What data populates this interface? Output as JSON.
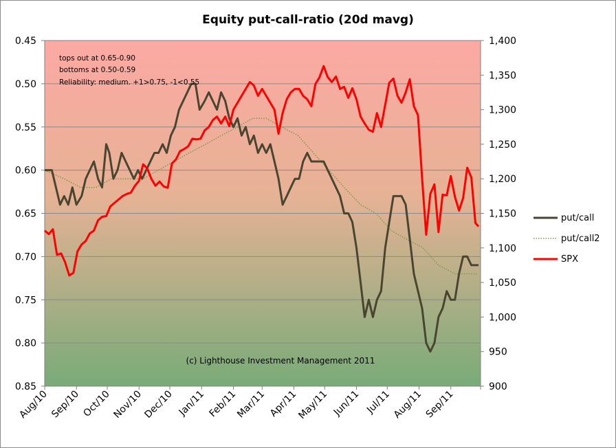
{
  "chart_data": {
    "type": "line",
    "title": "Equity put-call-ratio (20d mavg)",
    "xlabel": "",
    "ylabel": "",
    "y_left": {
      "range": [
        0.45,
        0.85
      ],
      "inverted": true,
      "ticks": [
        "0.45",
        "0.50",
        "0.55",
        "0.60",
        "0.65",
        "0.70",
        "0.75",
        "0.80",
        "0.85"
      ]
    },
    "y_right": {
      "range": [
        900,
        1400
      ],
      "ticks": [
        "1,400",
        "1,350",
        "1,300",
        "1,250",
        "1,200",
        "1,150",
        "1,100",
        "1,050",
        "1,000",
        "950",
        "900"
      ]
    },
    "x_ticks": [
      "Aug/10",
      "Sep/10",
      "Oct/10",
      "Nov/10",
      "Dec/10",
      "Jan/11",
      "Feb/11",
      "Mar/11",
      "Apr/11",
      "May/11",
      "Jun/11",
      "Jul/11",
      "Aug/11",
      "Sep/11"
    ],
    "x_range": [
      "2010-08-01",
      "2011-09-30"
    ],
    "grid": true,
    "background": "gradient red (top) to green (bottom)",
    "legend_position": "right",
    "annotations": {
      "top_left": [
        "tops out at 0.65-0.90",
        "bottoms at 0.50-0.59",
        "Reliability: medium.  +1>0.75, -1<0.55"
      ],
      "bottom": "(c) Lighthouse Investment Management 2011"
    },
    "series": [
      {
        "name": "put/call",
        "axis": "left",
        "color": "#4a4530",
        "style": "solid",
        "points": [
          [
            "2010-08-01",
            0.6
          ],
          [
            "2010-08-08",
            0.6
          ],
          [
            "2010-08-12",
            0.62
          ],
          [
            "2010-08-16",
            0.64
          ],
          [
            "2010-08-20",
            0.63
          ],
          [
            "2010-08-24",
            0.64
          ],
          [
            "2010-08-28",
            0.62
          ],
          [
            "2010-09-01",
            0.64
          ],
          [
            "2010-09-06",
            0.63
          ],
          [
            "2010-09-10",
            0.61
          ],
          [
            "2010-09-14",
            0.6
          ],
          [
            "2010-09-18",
            0.59
          ],
          [
            "2010-09-22",
            0.61
          ],
          [
            "2010-09-26",
            0.62
          ],
          [
            "2010-09-30",
            0.57
          ],
          [
            "2010-10-03",
            0.58
          ],
          [
            "2010-10-07",
            0.61
          ],
          [
            "2010-10-11",
            0.6
          ],
          [
            "2010-10-15",
            0.58
          ],
          [
            "2010-10-19",
            0.59
          ],
          [
            "2010-10-23",
            0.6
          ],
          [
            "2010-10-27",
            0.61
          ],
          [
            "2010-10-31",
            0.6
          ],
          [
            "2010-11-04",
            0.61
          ],
          [
            "2010-11-08",
            0.6
          ],
          [
            "2010-11-12",
            0.59
          ],
          [
            "2010-11-16",
            0.58
          ],
          [
            "2010-11-20",
            0.58
          ],
          [
            "2010-11-24",
            0.57
          ],
          [
            "2010-11-28",
            0.58
          ],
          [
            "2010-12-02",
            0.56
          ],
          [
            "2010-12-06",
            0.55
          ],
          [
            "2010-12-10",
            0.53
          ],
          [
            "2010-12-14",
            0.52
          ],
          [
            "2010-12-18",
            0.51
          ],
          [
            "2010-12-22",
            0.5
          ],
          [
            "2010-12-26",
            0.5
          ],
          [
            "2010-12-30",
            0.53
          ],
          [
            "2011-01-04",
            0.52
          ],
          [
            "2011-01-08",
            0.51
          ],
          [
            "2011-01-12",
            0.52
          ],
          [
            "2011-01-16",
            0.53
          ],
          [
            "2011-01-20",
            0.51
          ],
          [
            "2011-01-24",
            0.52
          ],
          [
            "2011-01-28",
            0.54
          ],
          [
            "2011-02-01",
            0.55
          ],
          [
            "2011-02-05",
            0.54
          ],
          [
            "2011-02-09",
            0.56
          ],
          [
            "2011-02-13",
            0.55
          ],
          [
            "2011-02-17",
            0.57
          ],
          [
            "2011-02-21",
            0.56
          ],
          [
            "2011-02-25",
            0.58
          ],
          [
            "2011-03-01",
            0.57
          ],
          [
            "2011-03-05",
            0.58
          ],
          [
            "2011-03-09",
            0.57
          ],
          [
            "2011-03-13",
            0.59
          ],
          [
            "2011-03-17",
            0.61
          ],
          [
            "2011-03-21",
            0.64
          ],
          [
            "2011-03-25",
            0.63
          ],
          [
            "2011-03-29",
            0.62
          ],
          [
            "2011-04-02",
            0.61
          ],
          [
            "2011-04-06",
            0.61
          ],
          [
            "2011-04-10",
            0.59
          ],
          [
            "2011-04-14",
            0.58
          ],
          [
            "2011-04-18",
            0.59
          ],
          [
            "2011-04-22",
            0.59
          ],
          [
            "2011-04-26",
            0.59
          ],
          [
            "2011-04-30",
            0.59
          ],
          [
            "2011-05-04",
            0.6
          ],
          [
            "2011-05-08",
            0.61
          ],
          [
            "2011-05-12",
            0.62
          ],
          [
            "2011-05-16",
            0.63
          ],
          [
            "2011-05-20",
            0.65
          ],
          [
            "2011-05-24",
            0.65
          ],
          [
            "2011-05-28",
            0.66
          ],
          [
            "2011-06-01",
            0.69
          ],
          [
            "2011-06-05",
            0.73
          ],
          [
            "2011-06-09",
            0.77
          ],
          [
            "2011-06-13",
            0.75
          ],
          [
            "2011-06-17",
            0.77
          ],
          [
            "2011-06-21",
            0.75
          ],
          [
            "2011-06-25",
            0.74
          ],
          [
            "2011-06-29",
            0.69
          ],
          [
            "2011-07-03",
            0.66
          ],
          [
            "2011-07-07",
            0.63
          ],
          [
            "2011-07-11",
            0.63
          ],
          [
            "2011-07-15",
            0.63
          ],
          [
            "2011-07-19",
            0.64
          ],
          [
            "2011-07-23",
            0.68
          ],
          [
            "2011-07-27",
            0.72
          ],
          [
            "2011-07-31",
            0.74
          ],
          [
            "2011-08-04",
            0.76
          ],
          [
            "2011-08-08",
            0.8
          ],
          [
            "2011-08-12",
            0.81
          ],
          [
            "2011-08-16",
            0.8
          ],
          [
            "2011-08-20",
            0.77
          ],
          [
            "2011-08-24",
            0.76
          ],
          [
            "2011-08-28",
            0.74
          ],
          [
            "2011-09-01",
            0.75
          ],
          [
            "2011-09-05",
            0.75
          ],
          [
            "2011-09-09",
            0.72
          ],
          [
            "2011-09-13",
            0.7
          ],
          [
            "2011-09-17",
            0.7
          ],
          [
            "2011-09-21",
            0.71
          ],
          [
            "2011-09-28",
            0.71
          ]
        ]
      },
      {
        "name": "put/call2",
        "axis": "left",
        "color": "#7a9a4a",
        "style": "dotted",
        "points": [
          [
            "2010-08-01",
            0.6
          ],
          [
            "2010-08-20",
            0.61
          ],
          [
            "2010-09-05",
            0.62
          ],
          [
            "2010-09-20",
            0.62
          ],
          [
            "2010-10-05",
            0.61
          ],
          [
            "2010-10-20",
            0.61
          ],
          [
            "2010-11-05",
            0.61
          ],
          [
            "2010-11-20",
            0.6
          ],
          [
            "2010-12-05",
            0.59
          ],
          [
            "2010-12-20",
            0.58
          ],
          [
            "2011-01-05",
            0.57
          ],
          [
            "2011-01-20",
            0.56
          ],
          [
            "2011-02-05",
            0.55
          ],
          [
            "2011-02-20",
            0.54
          ],
          [
            "2011-03-05",
            0.54
          ],
          [
            "2011-03-20",
            0.55
          ],
          [
            "2011-04-05",
            0.56
          ],
          [
            "2011-04-20",
            0.58
          ],
          [
            "2011-05-05",
            0.6
          ],
          [
            "2011-05-20",
            0.62
          ],
          [
            "2011-06-05",
            0.64
          ],
          [
            "2011-06-20",
            0.65
          ],
          [
            "2011-07-05",
            0.67
          ],
          [
            "2011-07-20",
            0.68
          ],
          [
            "2011-08-05",
            0.69
          ],
          [
            "2011-08-20",
            0.71
          ],
          [
            "2011-09-05",
            0.72
          ],
          [
            "2011-09-20",
            0.72
          ],
          [
            "2011-09-28",
            0.72
          ]
        ]
      },
      {
        "name": "SPX",
        "axis": "right",
        "color": "#ff0000",
        "style": "solid",
        "points": [
          [
            "2010-08-01",
            1125
          ],
          [
            "2010-08-05",
            1120
          ],
          [
            "2010-08-09",
            1127
          ],
          [
            "2010-08-13",
            1090
          ],
          [
            "2010-08-17",
            1092
          ],
          [
            "2010-08-21",
            1079
          ],
          [
            "2010-08-25",
            1060
          ],
          [
            "2010-08-29",
            1064
          ],
          [
            "2010-09-02",
            1095
          ],
          [
            "2010-09-06",
            1105
          ],
          [
            "2010-09-10",
            1110
          ],
          [
            "2010-09-14",
            1121
          ],
          [
            "2010-09-18",
            1125
          ],
          [
            "2010-09-22",
            1140
          ],
          [
            "2010-09-26",
            1145
          ],
          [
            "2010-09-30",
            1146
          ],
          [
            "2010-10-04",
            1160
          ],
          [
            "2010-10-08",
            1165
          ],
          [
            "2010-10-12",
            1170
          ],
          [
            "2010-10-16",
            1175
          ],
          [
            "2010-10-20",
            1178
          ],
          [
            "2010-10-24",
            1180
          ],
          [
            "2010-10-28",
            1190
          ],
          [
            "2010-11-01",
            1197
          ],
          [
            "2010-11-05",
            1221
          ],
          [
            "2010-11-09",
            1215
          ],
          [
            "2010-11-13",
            1200
          ],
          [
            "2010-11-17",
            1190
          ],
          [
            "2010-11-21",
            1196
          ],
          [
            "2010-11-25",
            1189
          ],
          [
            "2010-11-29",
            1187
          ],
          [
            "2010-12-03",
            1222
          ],
          [
            "2010-12-07",
            1228
          ],
          [
            "2010-12-11",
            1240
          ],
          [
            "2010-12-15",
            1243
          ],
          [
            "2010-12-19",
            1247
          ],
          [
            "2010-12-23",
            1258
          ],
          [
            "2010-12-27",
            1257
          ],
          [
            "2010-12-31",
            1258
          ],
          [
            "2011-01-04",
            1270
          ],
          [
            "2011-01-08",
            1275
          ],
          [
            "2011-01-12",
            1285
          ],
          [
            "2011-01-16",
            1290
          ],
          [
            "2011-01-20",
            1280
          ],
          [
            "2011-01-24",
            1290
          ],
          [
            "2011-01-28",
            1276
          ],
          [
            "2011-02-01",
            1300
          ],
          [
            "2011-02-05",
            1310
          ],
          [
            "2011-02-09",
            1320
          ],
          [
            "2011-02-13",
            1330
          ],
          [
            "2011-02-17",
            1340
          ],
          [
            "2011-02-21",
            1335
          ],
          [
            "2011-02-25",
            1320
          ],
          [
            "2011-03-01",
            1330
          ],
          [
            "2011-03-05",
            1320
          ],
          [
            "2011-03-09",
            1310
          ],
          [
            "2011-03-13",
            1300
          ],
          [
            "2011-03-17",
            1265
          ],
          [
            "2011-03-21",
            1295
          ],
          [
            "2011-03-25",
            1315
          ],
          [
            "2011-03-29",
            1325
          ],
          [
            "2011-04-02",
            1330
          ],
          [
            "2011-04-06",
            1330
          ],
          [
            "2011-04-10",
            1320
          ],
          [
            "2011-04-14",
            1315
          ],
          [
            "2011-04-18",
            1305
          ],
          [
            "2011-04-22",
            1337
          ],
          [
            "2011-04-26",
            1347
          ],
          [
            "2011-04-30",
            1363
          ],
          [
            "2011-05-04",
            1347
          ],
          [
            "2011-05-08",
            1340
          ],
          [
            "2011-05-12",
            1348
          ],
          [
            "2011-05-16",
            1330
          ],
          [
            "2011-05-20",
            1333
          ],
          [
            "2011-05-24",
            1317
          ],
          [
            "2011-05-28",
            1331
          ],
          [
            "2011-06-01",
            1315
          ],
          [
            "2011-06-05",
            1290
          ],
          [
            "2011-06-09",
            1280
          ],
          [
            "2011-06-13",
            1271
          ],
          [
            "2011-06-17",
            1268
          ],
          [
            "2011-06-21",
            1295
          ],
          [
            "2011-06-25",
            1275
          ],
          [
            "2011-06-29",
            1307
          ],
          [
            "2011-07-03",
            1339
          ],
          [
            "2011-07-07",
            1345
          ],
          [
            "2011-07-11",
            1320
          ],
          [
            "2011-07-15",
            1310
          ],
          [
            "2011-07-19",
            1325
          ],
          [
            "2011-07-23",
            1344
          ],
          [
            "2011-07-27",
            1305
          ],
          [
            "2011-07-31",
            1292
          ],
          [
            "2011-08-04",
            1200
          ],
          [
            "2011-08-08",
            1119
          ],
          [
            "2011-08-12",
            1178
          ],
          [
            "2011-08-16",
            1192
          ],
          [
            "2011-08-20",
            1123
          ],
          [
            "2011-08-24",
            1177
          ],
          [
            "2011-08-28",
            1176
          ],
          [
            "2011-09-01",
            1204
          ],
          [
            "2011-09-05",
            1174
          ],
          [
            "2011-09-09",
            1154
          ],
          [
            "2011-09-13",
            1172
          ],
          [
            "2011-09-17",
            1216
          ],
          [
            "2011-09-21",
            1202
          ],
          [
            "2011-09-25",
            1136
          ],
          [
            "2011-09-28",
            1131
          ]
        ]
      }
    ]
  }
}
